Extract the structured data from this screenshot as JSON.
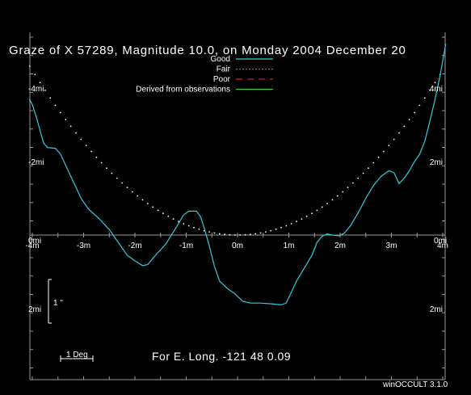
{
  "chart_data": {
    "type": "line",
    "title": "Graze of  X 57289,  Magnitude  10.0,  on Monday  2004  December  20",
    "footer_text": "For E. Long. -121 48  0.09",
    "watermark": "winOCCULT 3.1.0",
    "scale_label": "1 Deg",
    "arcsec_label": "1 \"",
    "x_axis": {
      "unit": "minutes",
      "range": [
        -4,
        4
      ],
      "ticks": [
        {
          "value": -4,
          "label": "-4m"
        },
        {
          "value": -3,
          "label": "-3m"
        },
        {
          "value": -2,
          "label": "-2m"
        },
        {
          "value": -1,
          "label": "-1m"
        },
        {
          "value": 0,
          "label": "0m"
        },
        {
          "value": 1,
          "label": "1m"
        },
        {
          "value": 2,
          "label": "2m"
        },
        {
          "value": 3,
          "label": "3m"
        },
        {
          "value": 4,
          "label": "4m"
        }
      ],
      "edge_left_label": "0mi",
      "edge_right_label": "0mi"
    },
    "y_axis": {
      "unit": "mi",
      "range": [
        -5,
        3
      ],
      "left_labels": [
        {
          "value": -4,
          "label": "-4mi"
        },
        {
          "value": -2,
          "label": "-2mi"
        },
        {
          "value": 2,
          "label": "2mi"
        }
      ],
      "right_labels": [
        {
          "value": -4,
          "label": "4mi"
        },
        {
          "value": -2,
          "label": "2mi"
        },
        {
          "value": 2,
          "label": "2mi"
        }
      ]
    },
    "legend": {
      "placement": "top-center",
      "entries": [
        {
          "label": "Good",
          "color": "#33ccdd",
          "style": "solid"
        },
        {
          "label": "Fair",
          "color": "#cc33cc",
          "style": "dotted"
        },
        {
          "label": "Poor",
          "color": "#cc2222",
          "style": "dashed"
        },
        {
          "label": "Derived from observations",
          "color": "#33cc33",
          "style": "solid"
        }
      ]
    },
    "series": [
      {
        "name": "Good",
        "color": "#33ccdd",
        "points": [
          [
            -4.06,
            -3.7
          ],
          [
            -4.0,
            -3.55
          ],
          [
            -3.92,
            -3.2
          ],
          [
            -3.85,
            -2.85
          ],
          [
            -3.78,
            -2.5
          ],
          [
            -3.7,
            -2.38
          ],
          [
            -3.55,
            -2.36
          ],
          [
            -3.45,
            -2.2
          ],
          [
            -3.35,
            -1.9
          ],
          [
            -3.2,
            -1.45
          ],
          [
            -3.05,
            -1.0
          ],
          [
            -2.9,
            -0.7
          ],
          [
            -2.7,
            -0.45
          ],
          [
            -2.5,
            -0.15
          ],
          [
            -2.3,
            0.25
          ],
          [
            -2.15,
            0.55
          ],
          [
            -2.0,
            0.7
          ],
          [
            -1.85,
            0.83
          ],
          [
            -1.75,
            0.8
          ],
          [
            -1.6,
            0.55
          ],
          [
            -1.4,
            0.25
          ],
          [
            -1.2,
            -0.2
          ],
          [
            -1.05,
            -0.55
          ],
          [
            -0.95,
            -0.65
          ],
          [
            -0.8,
            -0.65
          ],
          [
            -0.72,
            -0.5
          ],
          [
            -0.65,
            -0.2
          ],
          [
            -0.55,
            0.3
          ],
          [
            -0.45,
            0.85
          ],
          [
            -0.35,
            1.25
          ],
          [
            -0.2,
            1.45
          ],
          [
            -0.05,
            1.6
          ],
          [
            0.1,
            1.8
          ],
          [
            0.25,
            1.85
          ],
          [
            0.45,
            1.85
          ],
          [
            0.65,
            1.87
          ],
          [
            0.85,
            1.9
          ],
          [
            0.95,
            1.85
          ],
          [
            1.05,
            1.55
          ],
          [
            1.15,
            1.25
          ],
          [
            1.3,
            0.9
          ],
          [
            1.45,
            0.55
          ],
          [
            1.55,
            0.2
          ],
          [
            1.65,
            0.03
          ],
          [
            1.75,
            -0.03
          ],
          [
            1.85,
            0.0
          ],
          [
            1.98,
            0.02
          ],
          [
            2.08,
            -0.05
          ],
          [
            2.2,
            -0.25
          ],
          [
            2.35,
            -0.6
          ],
          [
            2.5,
            -1.0
          ],
          [
            2.65,
            -1.35
          ],
          [
            2.8,
            -1.6
          ],
          [
            2.95,
            -1.75
          ],
          [
            3.05,
            -1.7
          ],
          [
            3.15,
            -1.4
          ],
          [
            3.25,
            -1.55
          ],
          [
            3.35,
            -1.75
          ],
          [
            3.45,
            -2.0
          ],
          [
            3.55,
            -2.2
          ],
          [
            3.65,
            -2.55
          ],
          [
            3.75,
            -3.1
          ],
          [
            3.85,
            -3.7
          ],
          [
            3.95,
            -4.35
          ],
          [
            4.02,
            -4.9
          ],
          [
            4.06,
            -5.2
          ]
        ]
      },
      {
        "name": "Limit line",
        "color": "#ffffff",
        "style": "dotted",
        "formula": "y = 0.28 * x^2"
      }
    ]
  }
}
